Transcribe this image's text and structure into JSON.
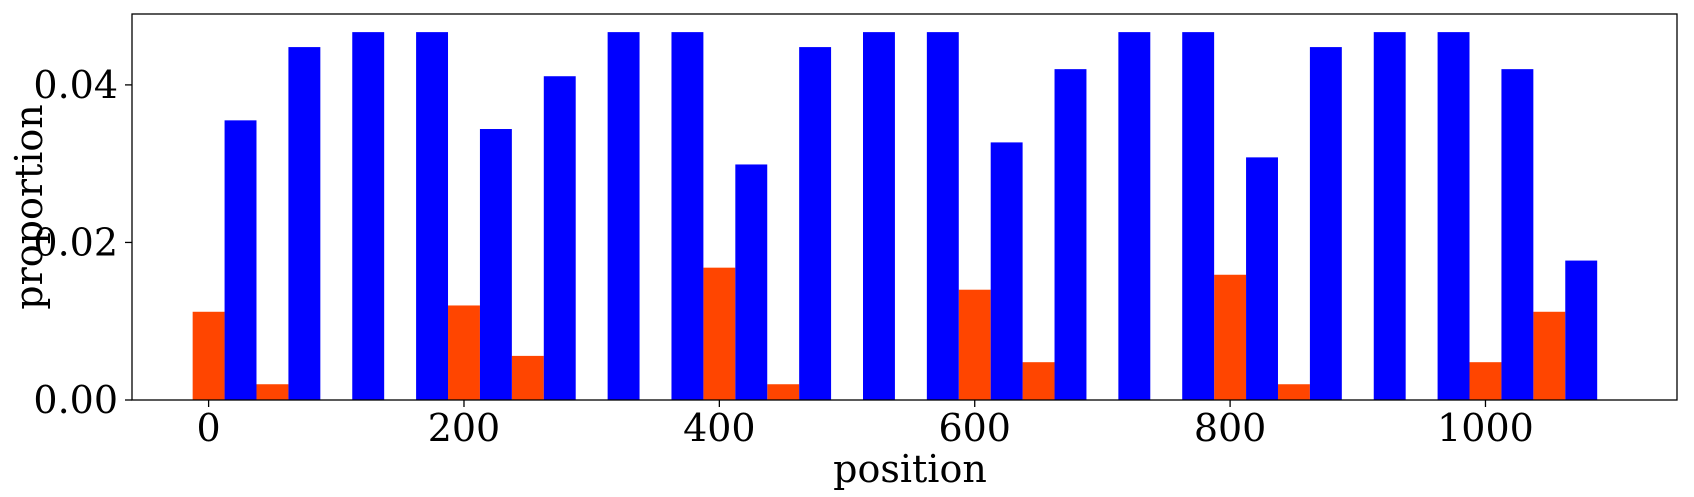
{
  "chart_data": {
    "type": "bar",
    "title": "",
    "xlabel": "position",
    "ylabel": "proportion",
    "xlim": [
      -60,
      1150
    ],
    "ylim": [
      0,
      0.049
    ],
    "xticks": [
      0,
      200,
      400,
      600,
      800,
      1000
    ],
    "xtick_labels": [
      "0",
      "200",
      "400",
      "600",
      "800",
      "1000"
    ],
    "yticks": [
      0,
      0.02,
      0.04
    ],
    "ytick_labels": [
      "0.00",
      "0.02",
      "0.04"
    ],
    "grid": false,
    "bar_width": 25,
    "series": [
      {
        "color": "#ff4500",
        "points": [
          {
            "x": 0,
            "y": 0.0112
          },
          {
            "x": 50,
            "y": 0.002
          },
          {
            "x": 200,
            "y": 0.012
          },
          {
            "x": 250,
            "y": 0.0056
          },
          {
            "x": 400,
            "y": 0.0168
          },
          {
            "x": 450,
            "y": 0.002
          },
          {
            "x": 600,
            "y": 0.014
          },
          {
            "x": 650,
            "y": 0.0048
          },
          {
            "x": 800,
            "y": 0.0159
          },
          {
            "x": 850,
            "y": 0.002
          },
          {
            "x": 1000,
            "y": 0.0048
          },
          {
            "x": 1050,
            "y": 0.0112
          }
        ]
      },
      {
        "color": "#0000ff",
        "points": [
          {
            "x": 25,
            "y": 0.0355
          },
          {
            "x": 75,
            "y": 0.0448
          },
          {
            "x": 125,
            "y": 0.0467
          },
          {
            "x": 175,
            "y": 0.0467
          },
          {
            "x": 225,
            "y": 0.0344
          },
          {
            "x": 275,
            "y": 0.0411
          },
          {
            "x": 325,
            "y": 0.0467
          },
          {
            "x": 375,
            "y": 0.0467
          },
          {
            "x": 425,
            "y": 0.0299
          },
          {
            "x": 475,
            "y": 0.0448
          },
          {
            "x": 525,
            "y": 0.0467
          },
          {
            "x": 575,
            "y": 0.0467
          },
          {
            "x": 625,
            "y": 0.0327
          },
          {
            "x": 675,
            "y": 0.042
          },
          {
            "x": 725,
            "y": 0.0467
          },
          {
            "x": 775,
            "y": 0.0467
          },
          {
            "x": 825,
            "y": 0.0308
          },
          {
            "x": 875,
            "y": 0.0448
          },
          {
            "x": 925,
            "y": 0.0467
          },
          {
            "x": 975,
            "y": 0.0467
          },
          {
            "x": 1025,
            "y": 0.042
          },
          {
            "x": 1075,
            "y": 0.0177
          }
        ]
      }
    ]
  }
}
